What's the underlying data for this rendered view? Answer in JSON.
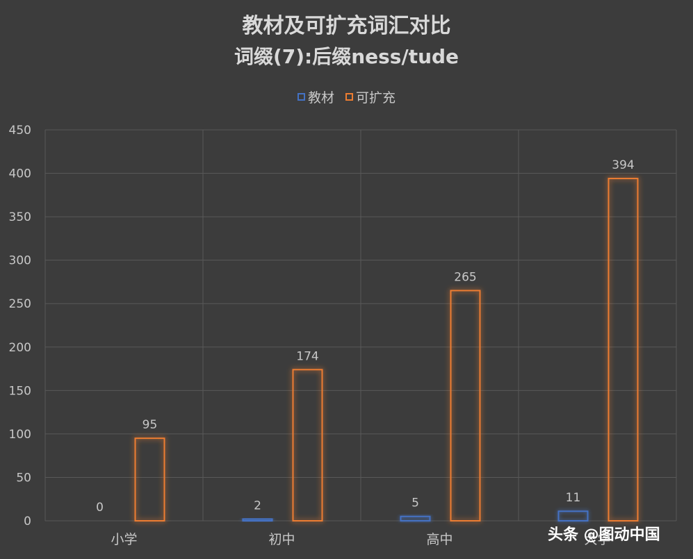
{
  "chart_data": {
    "type": "bar",
    "title": "教材及可扩充词汇对比",
    "subtitle": "词缀(7):后缀ness/tude",
    "categories": [
      "小学",
      "初中",
      "高中",
      "大学"
    ],
    "series": [
      {
        "name": "教材",
        "values": [
          0,
          2,
          5,
          11
        ],
        "color": "#4472c4"
      },
      {
        "name": "可扩充",
        "values": [
          95,
          174,
          265,
          394
        ],
        "color": "#ed7d31"
      }
    ],
    "xlabel": "",
    "ylabel": "",
    "ylim": [
      0,
      450
    ],
    "yticks": [
      0,
      50,
      100,
      150,
      200,
      250,
      300,
      350,
      400,
      450
    ],
    "grid": true,
    "legend_position": "top",
    "data_labels": true
  },
  "watermark": "头条 @图动中国"
}
